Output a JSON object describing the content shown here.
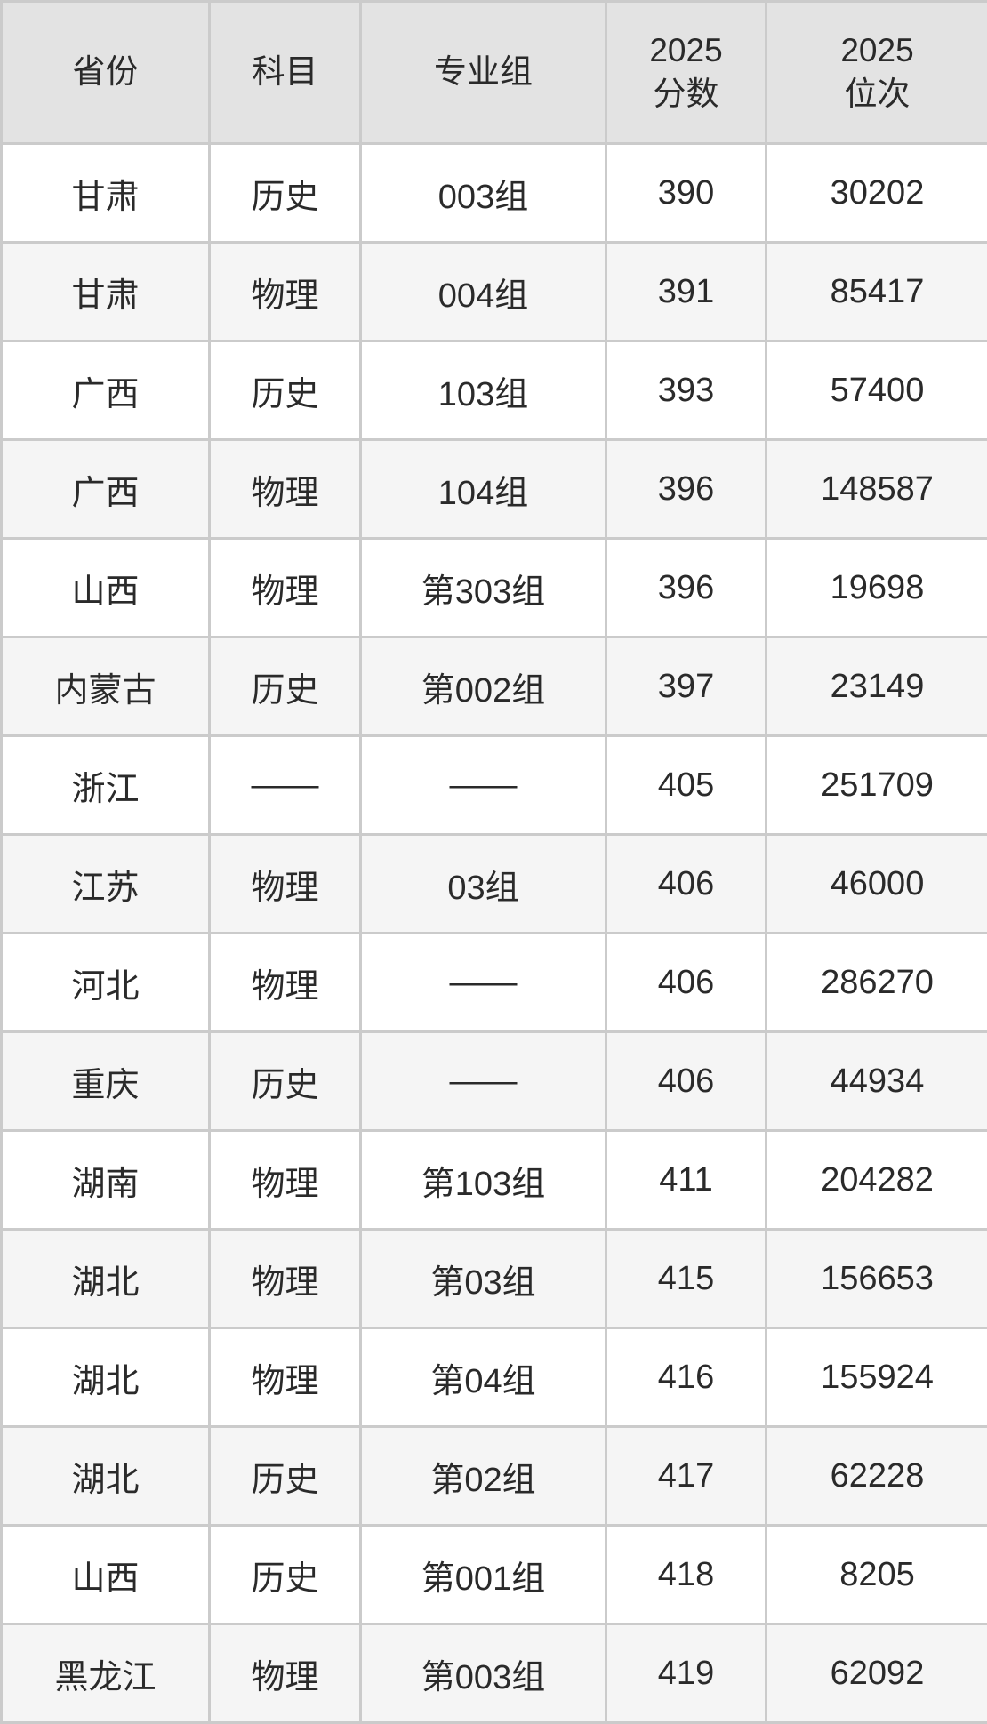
{
  "chart_data": {
    "type": "table",
    "columns": [
      "省份",
      "科目",
      "专业组",
      "2025\n分数",
      "2025\n位次"
    ],
    "rows": [
      [
        "甘肃",
        "历史",
        "003组",
        "390",
        "30202"
      ],
      [
        "甘肃",
        "物理",
        "004组",
        "391",
        "85417"
      ],
      [
        "广西",
        "历史",
        "103组",
        "393",
        "57400"
      ],
      [
        "广西",
        "物理",
        "104组",
        "396",
        "148587"
      ],
      [
        "山西",
        "物理",
        "第303组",
        "396",
        "19698"
      ],
      [
        "内蒙古",
        "历史",
        "第002组",
        "397",
        "23149"
      ],
      [
        "浙江",
        "——",
        "——",
        "405",
        "251709"
      ],
      [
        "江苏",
        "物理",
        "03组",
        "406",
        "46000"
      ],
      [
        "河北",
        "物理",
        "——",
        "406",
        "286270"
      ],
      [
        "重庆",
        "历史",
        "——",
        "406",
        "44934"
      ],
      [
        "湖南",
        "物理",
        "第103组",
        "411",
        "204282"
      ],
      [
        "湖北",
        "物理",
        "第03组",
        "415",
        "156653"
      ],
      [
        "湖北",
        "物理",
        "第04组",
        "416",
        "155924"
      ],
      [
        "湖北",
        "历史",
        "第02组",
        "417",
        "62228"
      ],
      [
        "山西",
        "历史",
        "第001组",
        "418",
        "8205"
      ],
      [
        "黑龙江",
        "物理",
        "第003组",
        "419",
        "62092"
      ]
    ]
  },
  "colors": {
    "header_bg": "#e3e3e3",
    "row_bg": "#ffffff",
    "row_alt_bg": "#f5f5f5",
    "border": "#cbcbcb",
    "text": "#2a2a2a"
  }
}
